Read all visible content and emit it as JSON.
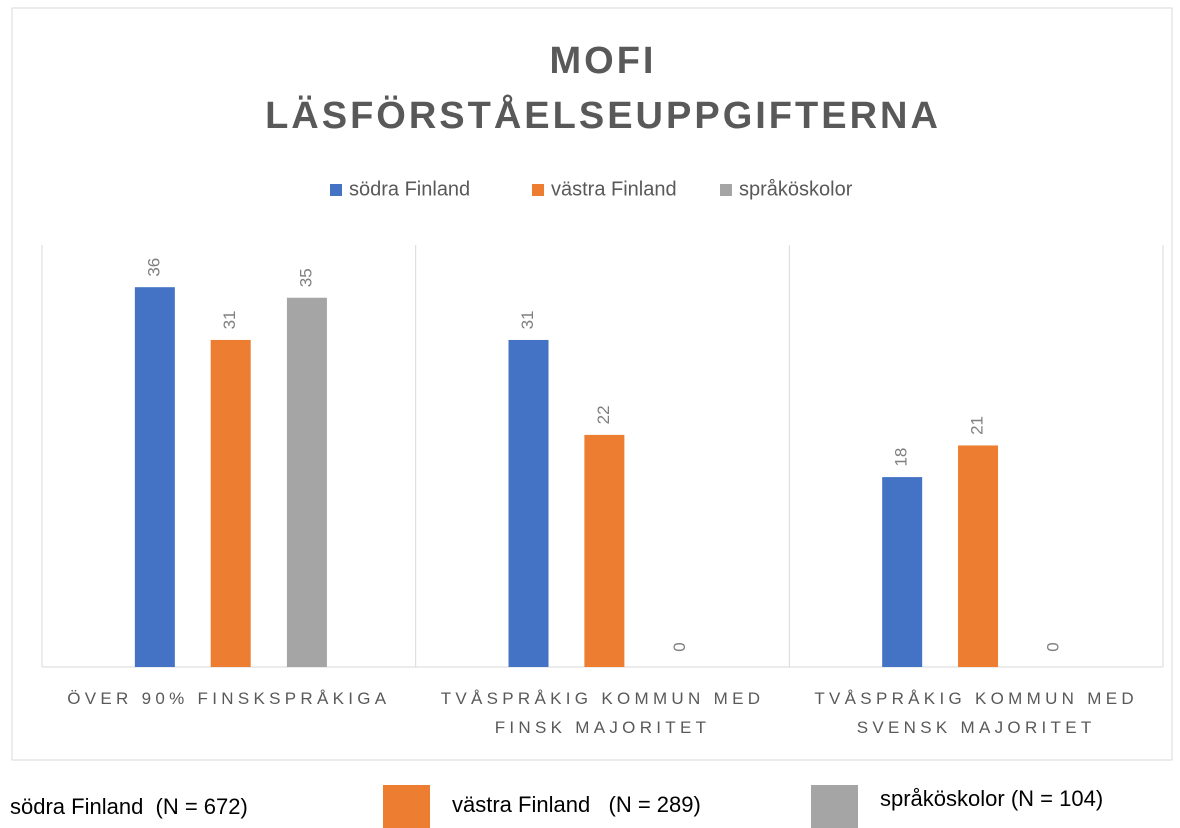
{
  "chart_data": {
    "type": "bar",
    "title": "MOFI LÄSFÖRSTÅELSEUPPGIFTERNA",
    "categories": [
      "ÖVER 90% FINSKSPRÅKIGA",
      "TVÅSPRÅKIG KOMMUN MED FINSK MAJORITET",
      "TVÅSPRÅKIG KOMMUN MED SVENSK MAJORITET"
    ],
    "series": [
      {
        "name": "södra Finland",
        "color": "#4472c4",
        "values": [
          36,
          31,
          18
        ]
      },
      {
        "name": "västra Finland",
        "color": "#ed7d31",
        "values": [
          31,
          22,
          21
        ]
      },
      {
        "name": "språköskolor",
        "color": "#a5a5a5",
        "values": [
          35,
          0,
          0
        ]
      }
    ],
    "ylim": [
      0,
      40
    ],
    "legend": "top",
    "footer_legend": [
      {
        "label": "södra Finland  (N = 672)"
      },
      {
        "label": "västra Finland   (N = 289)",
        "color": "#ed7d31"
      },
      {
        "label": "språköskolor (N = 104)",
        "color": "#a5a5a5"
      }
    ]
  }
}
